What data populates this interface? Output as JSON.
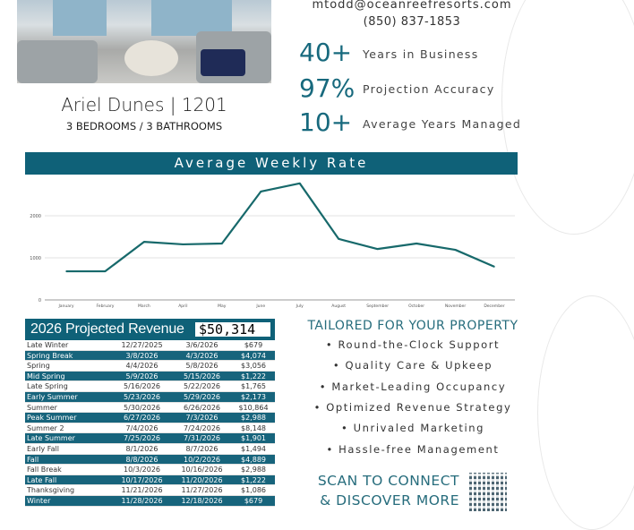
{
  "property": {
    "name": "Ariel Dunes | 1201",
    "details": "3 BEDROOMS / 3 BATHROOMS"
  },
  "contact": {
    "email": "mtodd@oceanreefresorts.com",
    "phone": "(850) 837-1853"
  },
  "stats": [
    {
      "value": "40+",
      "label": "Years in Business"
    },
    {
      "value": "97%",
      "label": "Projection Accuracy"
    },
    {
      "value": "10+",
      "label": "Average Years Managed"
    }
  ],
  "chart_data": {
    "type": "line",
    "title": "Average Weekly Rate",
    "categories": [
      "January",
      "February",
      "March",
      "April",
      "May",
      "June",
      "July",
      "August",
      "September",
      "October",
      "November",
      "December"
    ],
    "values": [
      680,
      680,
      1380,
      1320,
      1340,
      2575,
      2770,
      1450,
      1210,
      1340,
      1190,
      790
    ],
    "ylim": [
      0,
      3000
    ],
    "yticks": [
      0,
      1000,
      2000
    ],
    "grid": true,
    "color": "#17696b"
  },
  "revenue": {
    "title": "2026 Projected Revenue",
    "total": "$50,314",
    "rows": [
      [
        "Late Winter",
        "12/27/2025",
        "3/6/2026",
        "$679"
      ],
      [
        "Spring Break",
        "3/8/2026",
        "4/3/2026",
        "$4,074"
      ],
      [
        "Spring",
        "4/4/2026",
        "5/8/2026",
        "$3,056"
      ],
      [
        "Mid Spring",
        "5/9/2026",
        "5/15/2026",
        "$1,222"
      ],
      [
        "Late Spring",
        "5/16/2026",
        "5/22/2026",
        "$1,765"
      ],
      [
        "Early Summer",
        "5/23/2026",
        "5/29/2026",
        "$2,173"
      ],
      [
        "Summer",
        "5/30/2026",
        "6/26/2026",
        "$10,864"
      ],
      [
        "Peak Summer",
        "6/27/2026",
        "7/3/2026",
        "$2,988"
      ],
      [
        "Summer 2",
        "7/4/2026",
        "7/24/2026",
        "$8,148"
      ],
      [
        "Late Summer",
        "7/25/2026",
        "7/31/2026",
        "$1,901"
      ],
      [
        "Early Fall",
        "8/1/2026",
        "8/7/2026",
        "$1,494"
      ],
      [
        "Fall",
        "8/8/2026",
        "10/2/2026",
        "$4,889"
      ],
      [
        "Fall Break",
        "10/3/2026",
        "10/16/2026",
        "$2,988"
      ],
      [
        "Late Fall",
        "10/17/2026",
        "11/20/2026",
        "$1,222"
      ],
      [
        "Thanksgiving",
        "11/21/2026",
        "11/27/2026",
        "$1,086"
      ],
      [
        "Winter",
        "11/28/2026",
        "12/18/2026",
        "$679"
      ]
    ]
  },
  "features": {
    "title": "TAILORED FOR YOUR PROPERTY",
    "items": [
      "• Round-the-Clock Support",
      "• Quality Care & Upkeep",
      "• Market-Leading Occupancy",
      "• Optimized Revenue Strategy",
      "• Unrivaled Marketing",
      "• Hassle-free Management"
    ]
  },
  "cta": {
    "line1": "SCAN TO CONNECT",
    "line2": "& DISCOVER MORE"
  },
  "colors": {
    "teal": "#0f6178",
    "line": "#17696b"
  }
}
